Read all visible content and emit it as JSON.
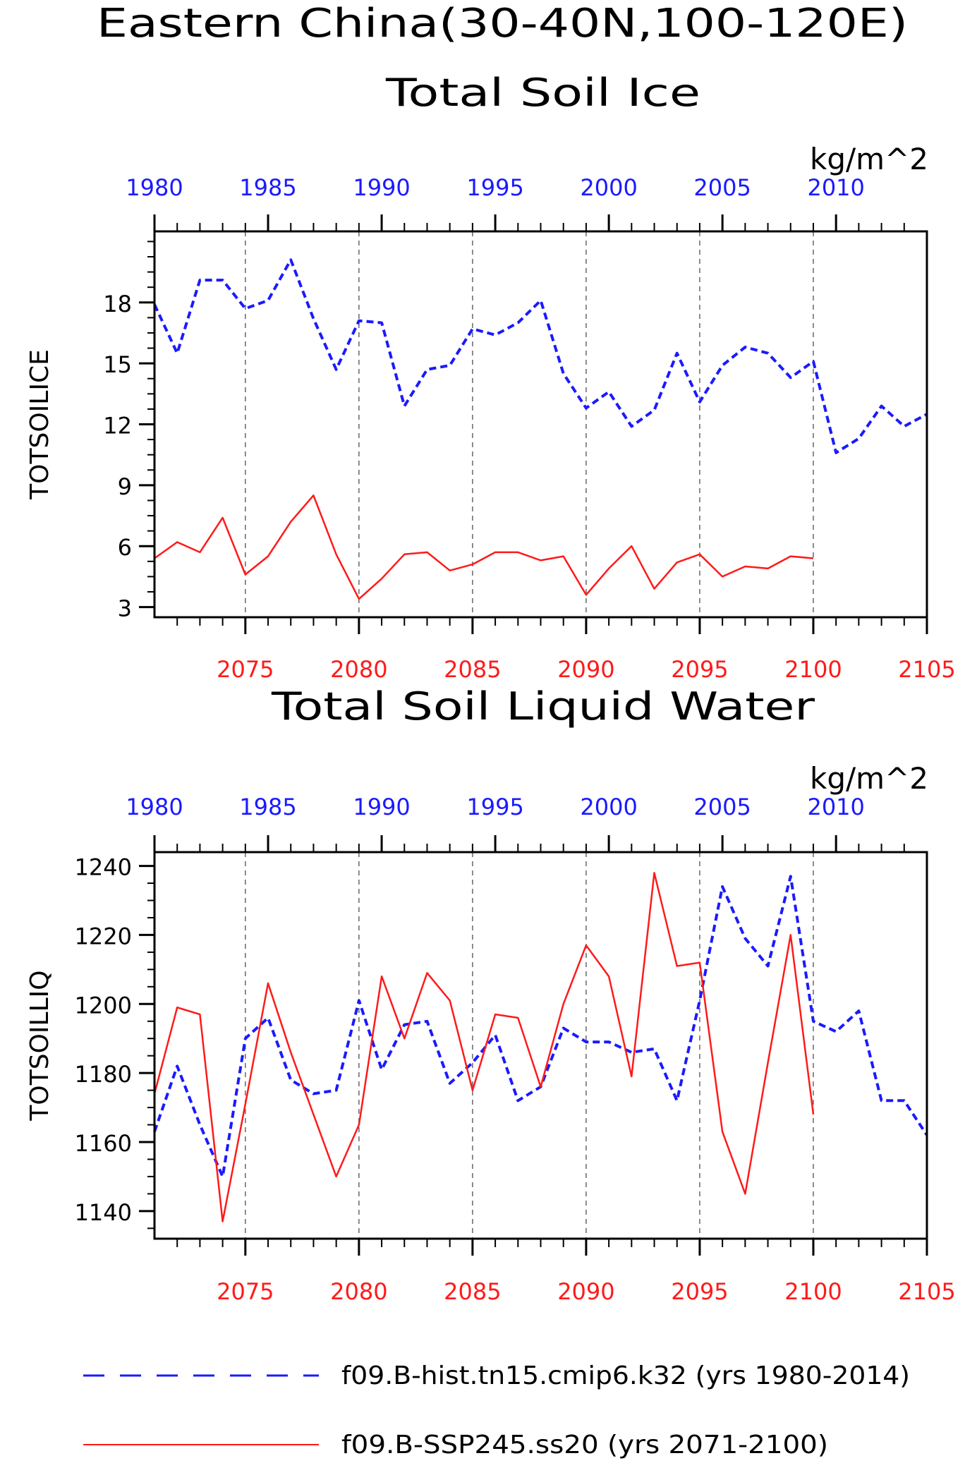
{
  "page_title": {
    "line1": "Eastern China(30-40N,100-120E)"
  },
  "colors": {
    "hist": "#1a1aff",
    "ssp": "#ff1a1a",
    "axis": "#000000",
    "grid": "#666666"
  },
  "legend": {
    "hist": "f09.B-hist.tn15.cmip6.k32 (yrs 1980-2014)",
    "ssp": "f09.B-SSP245.ss20 (yrs 2071-2100)"
  },
  "chart_data": [
    {
      "type": "line",
      "title": "Total Soil Ice",
      "units": "kg/m^2",
      "ylabel": "TOTSOILICE",
      "ylim": [
        2.5,
        21.5
      ],
      "y_ticks": [
        3,
        6,
        9,
        12,
        15,
        18
      ],
      "top_axis": {
        "ticks": [
          1980,
          1985,
          1990,
          1995,
          2000,
          2005,
          2010
        ]
      },
      "bottom_axis": {
        "ticks": [
          2075,
          2080,
          2085,
          2090,
          2095,
          2100,
          2105
        ]
      },
      "grid": "vertical dashed",
      "series": [
        {
          "name": "f09.B-hist.tn15.cmip6.k32 (yrs 1980-2014)",
          "style": "dashed",
          "x": [
            1980,
            1981,
            1982,
            1983,
            1984,
            1985,
            1986,
            1987,
            1988,
            1989,
            1990,
            1991,
            1992,
            1993,
            1994,
            1995,
            1996,
            1997,
            1998,
            1999,
            2000,
            2001,
            2002,
            2003,
            2004,
            2005,
            2006,
            2007,
            2008,
            2009,
            2010,
            2011,
            2012,
            2013,
            2014
          ],
          "values": [
            17.9,
            15.5,
            19.1,
            19.1,
            17.7,
            18.1,
            20.1,
            17.2,
            14.7,
            17.1,
            17.0,
            12.9,
            14.7,
            14.9,
            16.7,
            16.4,
            17.0,
            18.1,
            14.5,
            12.8,
            13.6,
            11.9,
            12.7,
            15.5,
            13.1,
            14.9,
            15.8,
            15.5,
            14.3,
            15.1,
            10.6,
            11.3,
            12.9,
            11.9,
            12.5
          ]
        },
        {
          "name": "f09.B-SSP245.ss20 (yrs 2071-2100)",
          "style": "solid",
          "x": [
            2071,
            2072,
            2073,
            2074,
            2075,
            2076,
            2077,
            2078,
            2079,
            2080,
            2081,
            2082,
            2083,
            2084,
            2085,
            2086,
            2087,
            2088,
            2089,
            2090,
            2091,
            2092,
            2093,
            2094,
            2095,
            2096,
            2097,
            2098,
            2099,
            2100
          ],
          "values": [
            5.4,
            6.2,
            5.7,
            7.4,
            4.6,
            5.5,
            7.2,
            8.5,
            5.6,
            3.4,
            4.4,
            5.6,
            5.7,
            4.8,
            5.1,
            5.7,
            5.7,
            5.3,
            5.5,
            3.6,
            4.9,
            6.0,
            3.9,
            5.2,
            5.6,
            4.5,
            5.0,
            4.9,
            5.5,
            5.4
          ]
        }
      ]
    },
    {
      "type": "line",
      "title": "Total Soil Liquid Water",
      "units": "kg/m^2",
      "ylabel": "TOTSOILLIQ",
      "ylim": [
        1132,
        1244
      ],
      "y_ticks": [
        1140,
        1160,
        1180,
        1200,
        1220,
        1240
      ],
      "top_axis": {
        "ticks": [
          1980,
          1985,
          1990,
          1995,
          2000,
          2005,
          2010
        ]
      },
      "bottom_axis": {
        "ticks": [
          2075,
          2080,
          2085,
          2090,
          2095,
          2100,
          2105
        ]
      },
      "grid": "vertical dashed",
      "series": [
        {
          "name": "f09.B-hist.tn15.cmip6.k32 (yrs 1980-2014)",
          "style": "dashed",
          "x": [
            1980,
            1981,
            1982,
            1983,
            1984,
            1985,
            1986,
            1987,
            1988,
            1989,
            1990,
            1991,
            1992,
            1993,
            1994,
            1995,
            1996,
            1997,
            1998,
            1999,
            2000,
            2001,
            2002,
            2003,
            2004,
            2005,
            2006,
            2007,
            2008,
            2009,
            2010,
            2011,
            2012,
            2013,
            2014
          ],
          "values": [
            1163,
            1182,
            1165,
            1150,
            1190,
            1196,
            1178,
            1174,
            1175,
            1201,
            1181,
            1194,
            1195,
            1177,
            1183,
            1191,
            1172,
            1176,
            1193,
            1189,
            1189,
            1186,
            1187,
            1172,
            1201,
            1234,
            1219,
            1211,
            1237,
            1195,
            1192,
            1198,
            1172,
            1172,
            1162
          ]
        },
        {
          "name": "f09.B-SSP245.ss20 (yrs 2071-2100)",
          "style": "solid",
          "x": [
            2071,
            2072,
            2073,
            2074,
            2075,
            2076,
            2077,
            2078,
            2079,
            2080,
            2081,
            2082,
            2083,
            2084,
            2085,
            2086,
            2087,
            2088,
            2089,
            2090,
            2091,
            2092,
            2093,
            2094,
            2095,
            2096,
            2097,
            2098,
            2099,
            2100
          ],
          "values": [
            1174,
            1199,
            1197,
            1137,
            1171,
            1206,
            1186,
            1168,
            1150,
            1165,
            1208,
            1190,
            1209,
            1201,
            1175,
            1197,
            1196,
            1176,
            1200,
            1217,
            1208,
            1179,
            1238,
            1211,
            1212,
            1163,
            1145,
            1183,
            1220,
            1168
          ]
        }
      ]
    }
  ]
}
